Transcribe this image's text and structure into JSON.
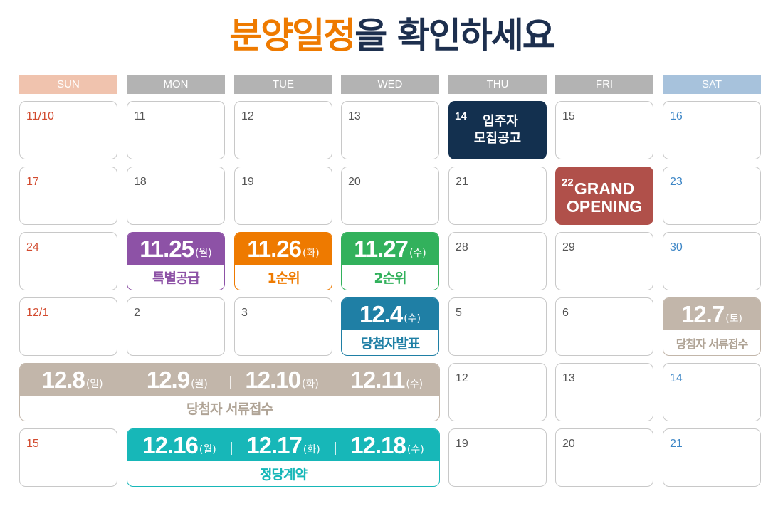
{
  "title": {
    "highlight": "분양일정",
    "rest": "을 확인하세요"
  },
  "days": [
    "SUN",
    "MON",
    "TUE",
    "WED",
    "THU",
    "FRI",
    "SAT"
  ],
  "colors": {
    "sun_header": "#f0c3ae",
    "weekday_header": "#b3b3b3",
    "sat_header": "#a7c2dc",
    "navy": "#13304f",
    "red": "#b0504a",
    "purple": "#8d52a6",
    "orange": "#ee7a00",
    "green": "#32b15c",
    "blue": "#1f7fa5",
    "beige": "#c2b6aa",
    "teal": "#17b7b8"
  },
  "dates": {
    "r0": [
      "11/10",
      "11",
      "12",
      "13",
      "14",
      "15",
      "16"
    ],
    "r1": [
      "17",
      "18",
      "19",
      "20",
      "21",
      "22",
      "23"
    ],
    "r2": [
      "24",
      "",
      "",
      "",
      "28",
      "29",
      "30"
    ],
    "r3": [
      "12/1",
      "2",
      "3",
      "",
      "5",
      "6",
      ""
    ],
    "r4": [
      "",
      "",
      "",
      "",
      "12",
      "13",
      "14"
    ],
    "r5": [
      "15",
      "",
      "",
      "",
      "19",
      "20",
      "21"
    ]
  },
  "events": {
    "move_in": {
      "label1": "입주자",
      "label2": "모집공고"
    },
    "grand_opening": {
      "label1": "GRAND",
      "label2": "OPENING"
    },
    "special": {
      "date": "11.25",
      "dow": "(월)",
      "label": "특별공급"
    },
    "first": {
      "date": "11.26",
      "dow": "(화)",
      "label": "1순위"
    },
    "second": {
      "date": "11.27",
      "dow": "(수)",
      "label": "2순위"
    },
    "winner": {
      "date": "12.4",
      "dow": "(수)",
      "label": "당첨자발표"
    },
    "docs_sat": {
      "date": "12.7",
      "dow": "(토)",
      "label": "당첨자 서류접수"
    },
    "docs_week": {
      "segments": [
        {
          "date": "12.8",
          "dow": "(일)"
        },
        {
          "date": "12.9",
          "dow": "(월)"
        },
        {
          "date": "12.10",
          "dow": "(화)"
        },
        {
          "date": "12.11",
          "dow": "(수)"
        }
      ],
      "label": "당첨자 서류접수"
    },
    "contract": {
      "segments": [
        {
          "date": "12.16",
          "dow": "(월)"
        },
        {
          "date": "12.17",
          "dow": "(화)"
        },
        {
          "date": "12.18",
          "dow": "(수)"
        }
      ],
      "label": "정당계약"
    }
  }
}
